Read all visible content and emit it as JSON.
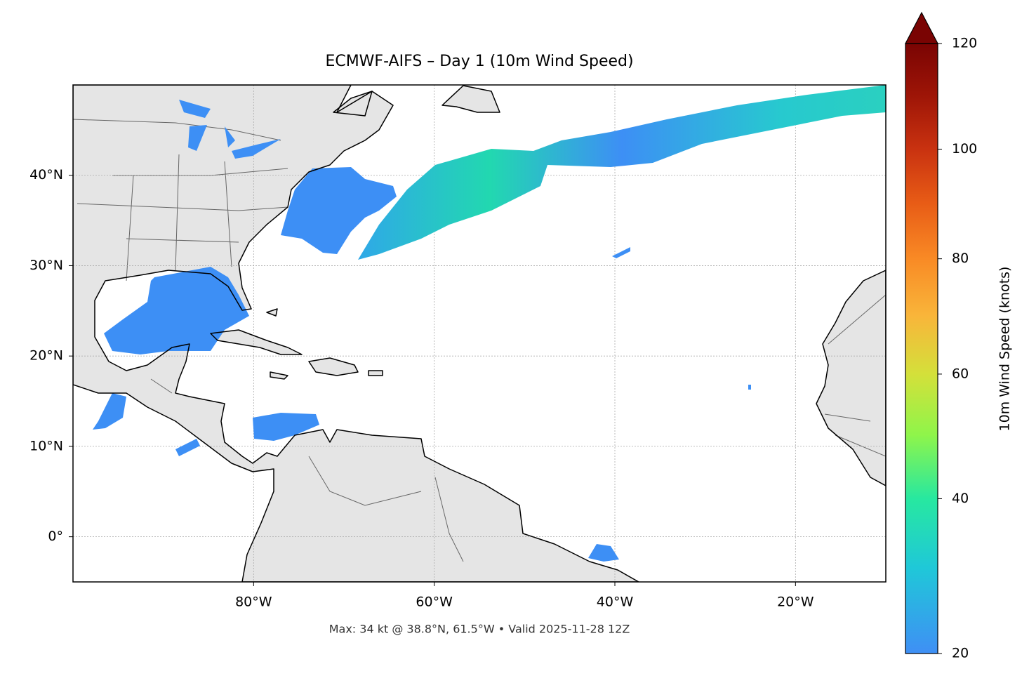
{
  "title": "ECMWF-AIFS – Day 1 (10m Wind Speed)",
  "footer": "Max: 34 kt @ 38.8°N, 61.5°W • Valid 2025-11-28 12Z",
  "map": {
    "xlim": [
      -100,
      -10
    ],
    "ylim": [
      -5,
      50
    ],
    "xticks": [
      {
        "value": -80,
        "label": "80°W"
      },
      {
        "value": -60,
        "label": "60°W"
      },
      {
        "value": -40,
        "label": "40°W"
      },
      {
        "value": -20,
        "label": "20°W"
      }
    ],
    "yticks": [
      {
        "value": 0,
        "label": "0°"
      },
      {
        "value": 10,
        "label": "10°N"
      },
      {
        "value": 20,
        "label": "20°N"
      },
      {
        "value": 30,
        "label": "30°N"
      },
      {
        "value": 40,
        "label": "40°N"
      }
    ],
    "grid": true
  },
  "colorbar": {
    "label": "10m Wind Speed (knots)",
    "lim": [
      20,
      120
    ],
    "ticks": [
      20,
      40,
      60,
      80,
      100,
      120
    ],
    "colormap": [
      "#3f8ff5",
      "#1fc8d8",
      "#27e8a0",
      "#8ff54a",
      "#d4e03a",
      "#f9b53a",
      "#f98a25",
      "#e85c16",
      "#c93210",
      "#9e1507",
      "#7a0403"
    ],
    "extend": "max"
  }
}
